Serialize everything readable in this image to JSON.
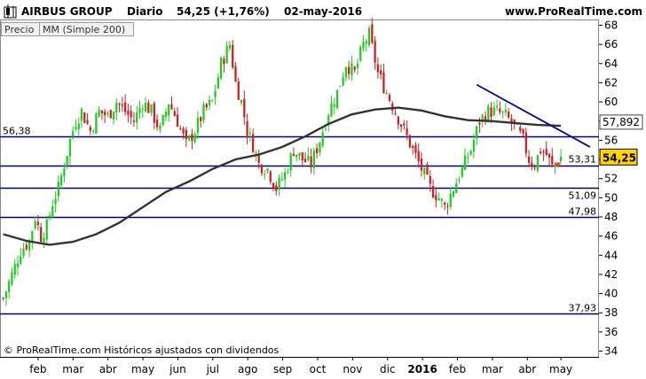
{
  "header": {
    "symbol": "AIRBUS GROUP",
    "period": "Diario",
    "price": "54,25 (+1,76%)",
    "date": "02-may-2016",
    "site": "www.ProRealTime.com"
  },
  "legend": {
    "price_label": "Precio",
    "ma_label": "MM (Simple 200)"
  },
  "footer": {
    "copyright": "© ProRealTime.com Históricos ajustados con dividendos"
  },
  "colors": {
    "up": "#22cc22",
    "down": "#cc2222",
    "hline": "#00007a",
    "ma": "#333333",
    "trend": "#0000aa",
    "current": "#ffd400",
    "arrow": "#ff4444"
  },
  "chart_data": {
    "type": "candlestick",
    "ylim": [
      33.4,
      68.6
    ],
    "yticks": [
      34,
      36,
      38,
      40,
      42,
      44,
      46,
      48,
      50,
      52,
      54,
      56,
      58,
      60,
      62,
      64,
      66,
      68
    ],
    "ytick_labels": [
      "34",
      "36",
      "38",
      "40",
      "42",
      "44",
      "46",
      "48",
      "50",
      "52",
      "54",
      "56",
      "58",
      "60",
      "62",
      "64",
      "66",
      "68"
    ],
    "x_labels": [
      "feb",
      "mar",
      "abr",
      "may",
      "jun",
      "jul",
      "ago",
      "sep",
      "oct",
      "nov",
      "dic",
      "2016",
      "feb",
      "mar",
      "abr",
      "may"
    ],
    "price_path": [
      [
        0,
        39.5
      ],
      [
        3,
        42
      ],
      [
        6,
        44.5
      ],
      [
        9,
        45.5
      ],
      [
        11,
        48
      ],
      [
        13,
        46
      ],
      [
        15,
        47
      ],
      [
        17,
        49.5
      ],
      [
        19,
        51
      ],
      [
        21,
        53.5
      ],
      [
        23,
        56
      ],
      [
        25,
        58
      ],
      [
        27,
        59
      ],
      [
        30,
        57
      ],
      [
        33,
        59
      ],
      [
        36,
        58.5
      ],
      [
        39,
        60
      ],
      [
        42,
        59
      ],
      [
        45,
        58
      ],
      [
        48,
        60
      ],
      [
        51,
        59
      ],
      [
        54,
        57
      ],
      [
        57,
        60
      ],
      [
        60,
        58
      ],
      [
        63,
        55.5
      ],
      [
        66,
        57
      ],
      [
        69,
        59
      ],
      [
        72,
        60
      ],
      [
        75,
        64
      ],
      [
        78,
        66
      ],
      [
        80,
        62
      ],
      [
        82,
        60
      ],
      [
        84,
        57
      ],
      [
        86,
        55.5
      ],
      [
        88,
        53.5
      ],
      [
        91,
        53
      ],
      [
        94,
        51
      ],
      [
        97,
        52.5
      ],
      [
        100,
        55
      ],
      [
        103,
        54
      ],
      [
        106,
        53.5
      ],
      [
        109,
        56
      ],
      [
        112,
        59
      ],
      [
        115,
        61
      ],
      [
        118,
        64
      ],
      [
        121,
        63
      ],
      [
        124,
        66
      ],
      [
        126,
        67
      ],
      [
        129,
        63
      ],
      [
        132,
        61
      ],
      [
        135,
        59
      ],
      [
        138,
        57
      ],
      [
        141,
        55
      ],
      [
        144,
        53
      ],
      [
        147,
        51
      ],
      [
        150,
        50
      ],
      [
        152,
        49
      ],
      [
        155,
        51
      ],
      [
        158,
        53
      ],
      [
        161,
        55
      ],
      [
        164,
        58
      ],
      [
        167,
        59
      ],
      [
        170,
        59
      ],
      [
        173,
        58.5
      ],
      [
        176,
        57.5
      ],
      [
        179,
        56
      ],
      [
        181,
        54
      ],
      [
        183,
        53.5
      ],
      [
        185,
        55
      ],
      [
        187,
        54.5
      ],
      [
        189,
        53.2
      ],
      [
        192,
        54.25
      ]
    ],
    "bars_count": 193,
    "ma200_points": [
      [
        0,
        46.2
      ],
      [
        8,
        45.5
      ],
      [
        16,
        45.1
      ],
      [
        24,
        45.4
      ],
      [
        32,
        46.2
      ],
      [
        40,
        47.4
      ],
      [
        48,
        49
      ],
      [
        56,
        50.6
      ],
      [
        64,
        51.7
      ],
      [
        72,
        53
      ],
      [
        80,
        54
      ],
      [
        88,
        54.5
      ],
      [
        96,
        55.3
      ],
      [
        104,
        56.4
      ],
      [
        112,
        57.7
      ],
      [
        120,
        58.7
      ],
      [
        128,
        59.2
      ],
      [
        136,
        59.4
      ],
      [
        144,
        59.1
      ],
      [
        152,
        58.5
      ],
      [
        160,
        58.1
      ],
      [
        168,
        58
      ],
      [
        176,
        57.8
      ],
      [
        184,
        57.6
      ],
      [
        192,
        57.5
      ]
    ],
    "hlines": [
      {
        "value": 56.38,
        "label": "56,38"
      },
      {
        "value": 53.31,
        "label": "53,31"
      },
      {
        "value": 51.09,
        "label": "51,09"
      },
      {
        "value": 47.98,
        "label": "47,98"
      },
      {
        "value": 37.93,
        "label": "37,93"
      }
    ],
    "trendline": {
      "from": [
        163,
        61.8
      ],
      "to": [
        202,
        55.3
      ]
    },
    "ma_current": {
      "value": 57.892,
      "label": "57,892"
    },
    "current_price": {
      "value": 54.25,
      "label": "54,25"
    }
  }
}
